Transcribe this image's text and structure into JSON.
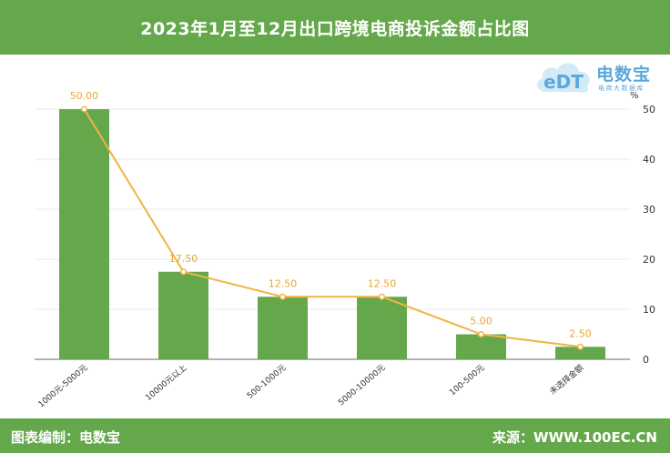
{
  "header": {
    "title": "2023年1月至12月出口跨境电商投诉金额占比图"
  },
  "logo": {
    "name": "电数宝",
    "sub": "电商大数据库",
    "cloud_text": "eDT"
  },
  "footer": {
    "left": "图表编制：电数宝",
    "right": "来源：WWW.100EC.CN"
  },
  "colors": {
    "bar": "#65a84c",
    "line": "#f0b443",
    "label": "#e8a735",
    "header": "#65a84c"
  },
  "chart_data": {
    "type": "bar",
    "categories": [
      "1000元-5000元",
      "10000元以上",
      "500-1000元",
      "5000-10000元",
      "100-500元",
      "未选择金额"
    ],
    "series": [
      {
        "type": "bar",
        "values": [
          50.0,
          17.5,
          12.5,
          12.5,
          5.0,
          2.5
        ]
      },
      {
        "type": "line",
        "values": [
          50.0,
          17.5,
          12.5,
          12.5,
          5.0,
          2.5
        ]
      }
    ],
    "data_labels": [
      "50.00",
      "17.50",
      "12.50",
      "12.50",
      "5.00",
      "2.50"
    ],
    "yunit": "%",
    "ylim": [
      0,
      50
    ],
    "yticks": [
      0,
      10,
      20,
      30,
      40,
      50
    ],
    "yaxis_side": "right",
    "grid": true
  }
}
